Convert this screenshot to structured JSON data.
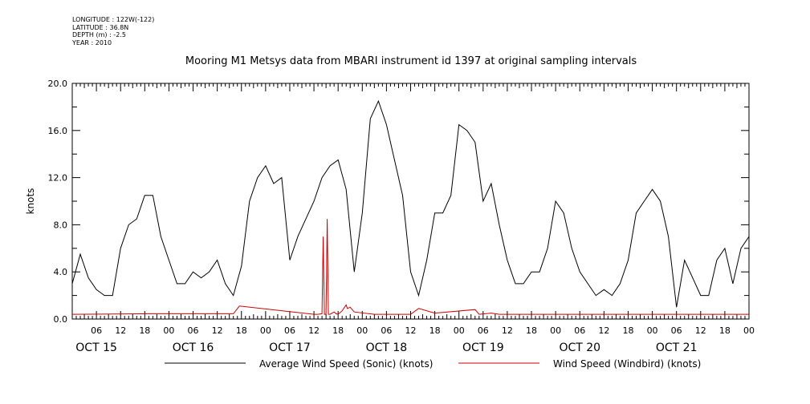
{
  "meta": {
    "longitude": "LONGITUDE : 122W(-122)",
    "latitude": "LATITUDE : 36.8N",
    "depth": "DEPTH (m) : -2.5",
    "year": "YEAR : 2010"
  },
  "chart_data": {
    "type": "line",
    "title": "Mooring M1 Metsys data from MBARI instrument id 1397 at original sampling intervals",
    "ylabel": "knots",
    "ylim": [
      0,
      20
    ],
    "yticks": [
      "0.0",
      "4.0",
      "8.0",
      "12.0",
      "16.0",
      "20.0"
    ],
    "xlim_hours": [
      0,
      168
    ],
    "hour_ticks": [
      "06",
      "12",
      "18",
      "00",
      "06",
      "12",
      "18",
      "00",
      "06",
      "12",
      "18",
      "00",
      "06",
      "12",
      "18",
      "00",
      "06",
      "12",
      "18",
      "00",
      "06",
      "12",
      "18",
      "00",
      "06",
      "12",
      "18",
      "00"
    ],
    "day_labels": [
      "OCT 15",
      "OCT 16",
      "OCT 17",
      "OCT 18",
      "OCT 19",
      "OCT 20",
      "OCT 21"
    ],
    "legend": {
      "position": "bottom"
    },
    "series": [
      {
        "name": "Average Wind Speed (Sonic) (knots)",
        "color": "#000000",
        "x": [
          0,
          2,
          4,
          6,
          8,
          10,
          12,
          14,
          16,
          18,
          20,
          22,
          24,
          26,
          28,
          30,
          32,
          34,
          36,
          38,
          40,
          42,
          44,
          46,
          48,
          50,
          52,
          54,
          56,
          58,
          60,
          62,
          64,
          66,
          68,
          70,
          72,
          74,
          76,
          78,
          80,
          82,
          84,
          86,
          88,
          90,
          92,
          94,
          96,
          98,
          100,
          102,
          104,
          106,
          108,
          110,
          112,
          114,
          116,
          118,
          120,
          122,
          124,
          126,
          128,
          130,
          132,
          134,
          136,
          138,
          140,
          142,
          144,
          146,
          148,
          150,
          152,
          154,
          156,
          158,
          160,
          162,
          164,
          166,
          168
        ],
        "y": [
          3.0,
          5.5,
          3.5,
          2.5,
          2.0,
          2.0,
          6.0,
          8.0,
          8.5,
          10.5,
          10.5,
          7.0,
          5.0,
          3.0,
          3.0,
          4.0,
          3.5,
          4.0,
          5.0,
          3.0,
          2.0,
          4.5,
          10.0,
          12.0,
          13.0,
          11.5,
          12.0,
          5.0,
          7.0,
          8.5,
          10.0,
          12.0,
          13.0,
          13.5,
          11.0,
          4.0,
          9.0,
          17.0,
          18.5,
          16.5,
          13.5,
          10.5,
          4.0,
          2.0,
          5.0,
          9.0,
          9.0,
          10.5,
          16.5,
          16.0,
          15.0,
          10.0,
          11.5,
          8.0,
          5.0,
          3.0,
          3.0,
          4.0,
          4.0,
          6.0,
          10.0,
          9.0,
          6.0,
          4.0,
          3.0,
          2.0,
          2.5,
          2.0,
          3.0,
          5.0,
          9.0,
          10.0,
          11.0,
          10.0,
          7.0,
          1.0,
          5.0,
          3.5,
          2.0,
          2.0,
          5.0,
          6.0,
          3.0,
          6.0,
          7.0
        ]
      },
      {
        "name": "Wind Speed (Windbird) (knots)",
        "color": "#cc0000",
        "x": [
          0,
          20,
          40,
          41.5,
          60,
          61,
          62,
          62.3,
          62.6,
          63,
          63.3,
          63.6,
          64,
          65,
          65.5,
          66,
          67,
          68,
          68.3,
          69,
          70,
          75,
          84,
          86,
          90,
          100,
          101,
          104,
          106,
          108,
          120,
          130,
          146,
          155,
          168
        ],
        "y": [
          0.4,
          0.45,
          0.45,
          1.1,
          0.4,
          0.4,
          0.45,
          7.0,
          0.4,
          0.4,
          8.5,
          0.4,
          0.4,
          0.6,
          0.45,
          0.4,
          0.7,
          1.2,
          0.9,
          1.0,
          0.6,
          0.4,
          0.4,
          0.9,
          0.5,
          0.8,
          0.4,
          0.5,
          0.4,
          0.4,
          0.4,
          0.4,
          0.4,
          0.4,
          0.4
        ]
      }
    ]
  }
}
